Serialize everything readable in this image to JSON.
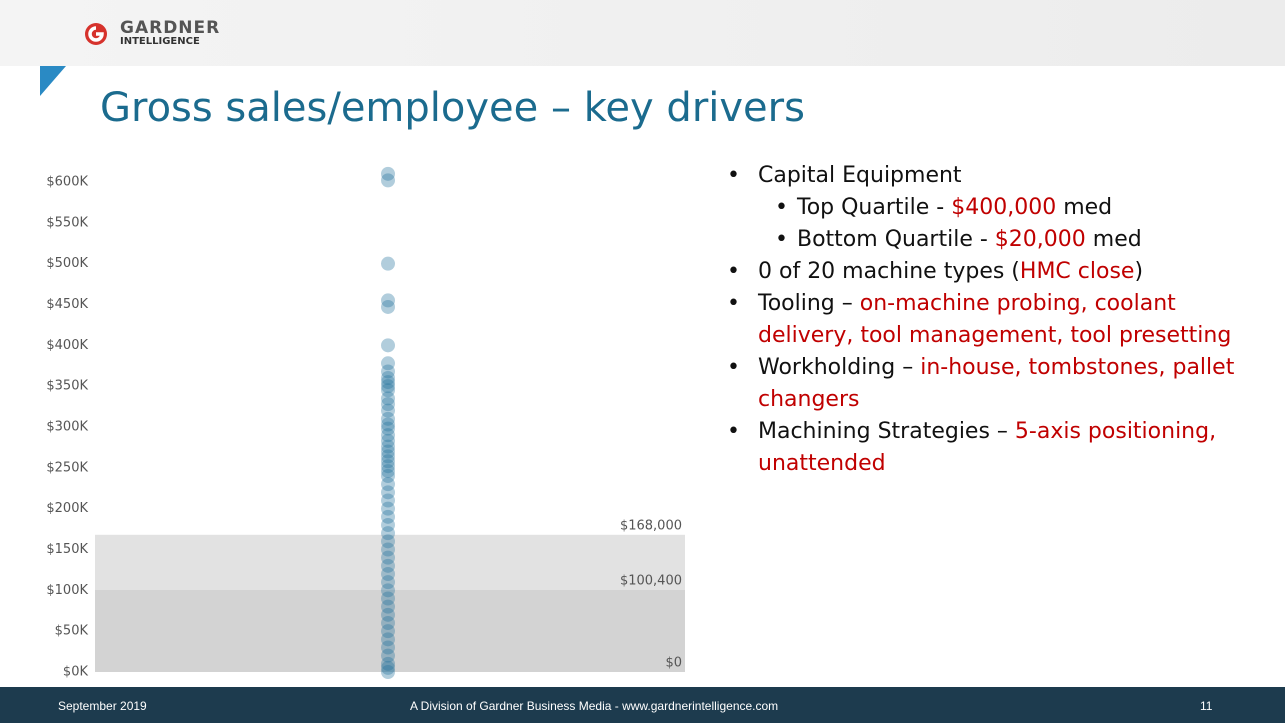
{
  "header": {
    "logo_line1": "GARDNER",
    "logo_line2": "INTELLIGENCE"
  },
  "title": "Gross sales/employee – key drivers",
  "chart_data": {
    "type": "scatter",
    "color": "#1f6f9a",
    "ylim": [
      0,
      600000
    ],
    "yticks": [
      {
        "value": 0,
        "label": "$0K"
      },
      {
        "value": 50000,
        "label": "$50K"
      },
      {
        "value": 100000,
        "label": "$100K"
      },
      {
        "value": 150000,
        "label": "$150K"
      },
      {
        "value": 200000,
        "label": "$200K"
      },
      {
        "value": 250000,
        "label": "$250K"
      },
      {
        "value": 300000,
        "label": "$300K"
      },
      {
        "value": 350000,
        "label": "$350K"
      },
      {
        "value": 400000,
        "label": "$400K"
      },
      {
        "value": 450000,
        "label": "$450K"
      },
      {
        "value": 500000,
        "label": "$500K"
      },
      {
        "value": 550000,
        "label": "$550K"
      },
      {
        "value": 600000,
        "label": "$600K"
      }
    ],
    "bands": [
      {
        "value": 168000,
        "label": "$168,000"
      },
      {
        "value": 100400,
        "label": "$100,400"
      },
      {
        "value": 0,
        "label": "$0"
      }
    ],
    "values": [
      610000,
      602000,
      500000,
      455000,
      447000,
      400000,
      378000,
      368000,
      360000,
      355000,
      350000,
      345000,
      335000,
      328000,
      320000,
      310000,
      303000,
      298000,
      290000,
      283000,
      276000,
      270000,
      264000,
      258000,
      252000,
      246000,
      240000,
      230000,
      220000,
      210000,
      200000,
      190000,
      180000,
      170000,
      160000,
      150000,
      140000,
      130000,
      120000,
      110000,
      100000,
      90000,
      80000,
      70000,
      60000,
      50000,
      40000,
      30000,
      20000,
      10000,
      5000,
      0
    ]
  },
  "bullets": [
    {
      "level": 1,
      "segments": [
        {
          "text": "Capital Equipment"
        }
      ]
    },
    {
      "level": 2,
      "segments": [
        {
          "text": "Top Quartile - "
        },
        {
          "text": "$400,000",
          "color": "#c00000"
        },
        {
          "text": " med"
        }
      ]
    },
    {
      "level": 2,
      "segments": [
        {
          "text": "Bottom Quartile - "
        },
        {
          "text": "$20,000",
          "color": "#c00000"
        },
        {
          "text": " med"
        }
      ]
    },
    {
      "level": 1,
      "segments": [
        {
          "text": "0 of 20 machine types ("
        },
        {
          "text": "HMC close",
          "color": "#c00000"
        },
        {
          "text": ")"
        }
      ]
    },
    {
      "level": 1,
      "segments": [
        {
          "text": "Tooling – "
        },
        {
          "text": "on-machine probing, coolant delivery, tool management, tool presetting",
          "color": "#c00000"
        }
      ]
    },
    {
      "level": 1,
      "segments": [
        {
          "text": "Workholding – "
        },
        {
          "text": "in-house, tombstones, pallet changers",
          "color": "#c00000"
        }
      ]
    },
    {
      "level": 1,
      "segments": [
        {
          "text": "Machining Strategies – "
        },
        {
          "text": "5-axis positioning, unattended",
          "color": "#c00000"
        }
      ]
    }
  ],
  "footer": {
    "date": "September 2019",
    "center": "A Division of Gardner Business Media - www.gardnerintelligence.com",
    "page": "11"
  }
}
